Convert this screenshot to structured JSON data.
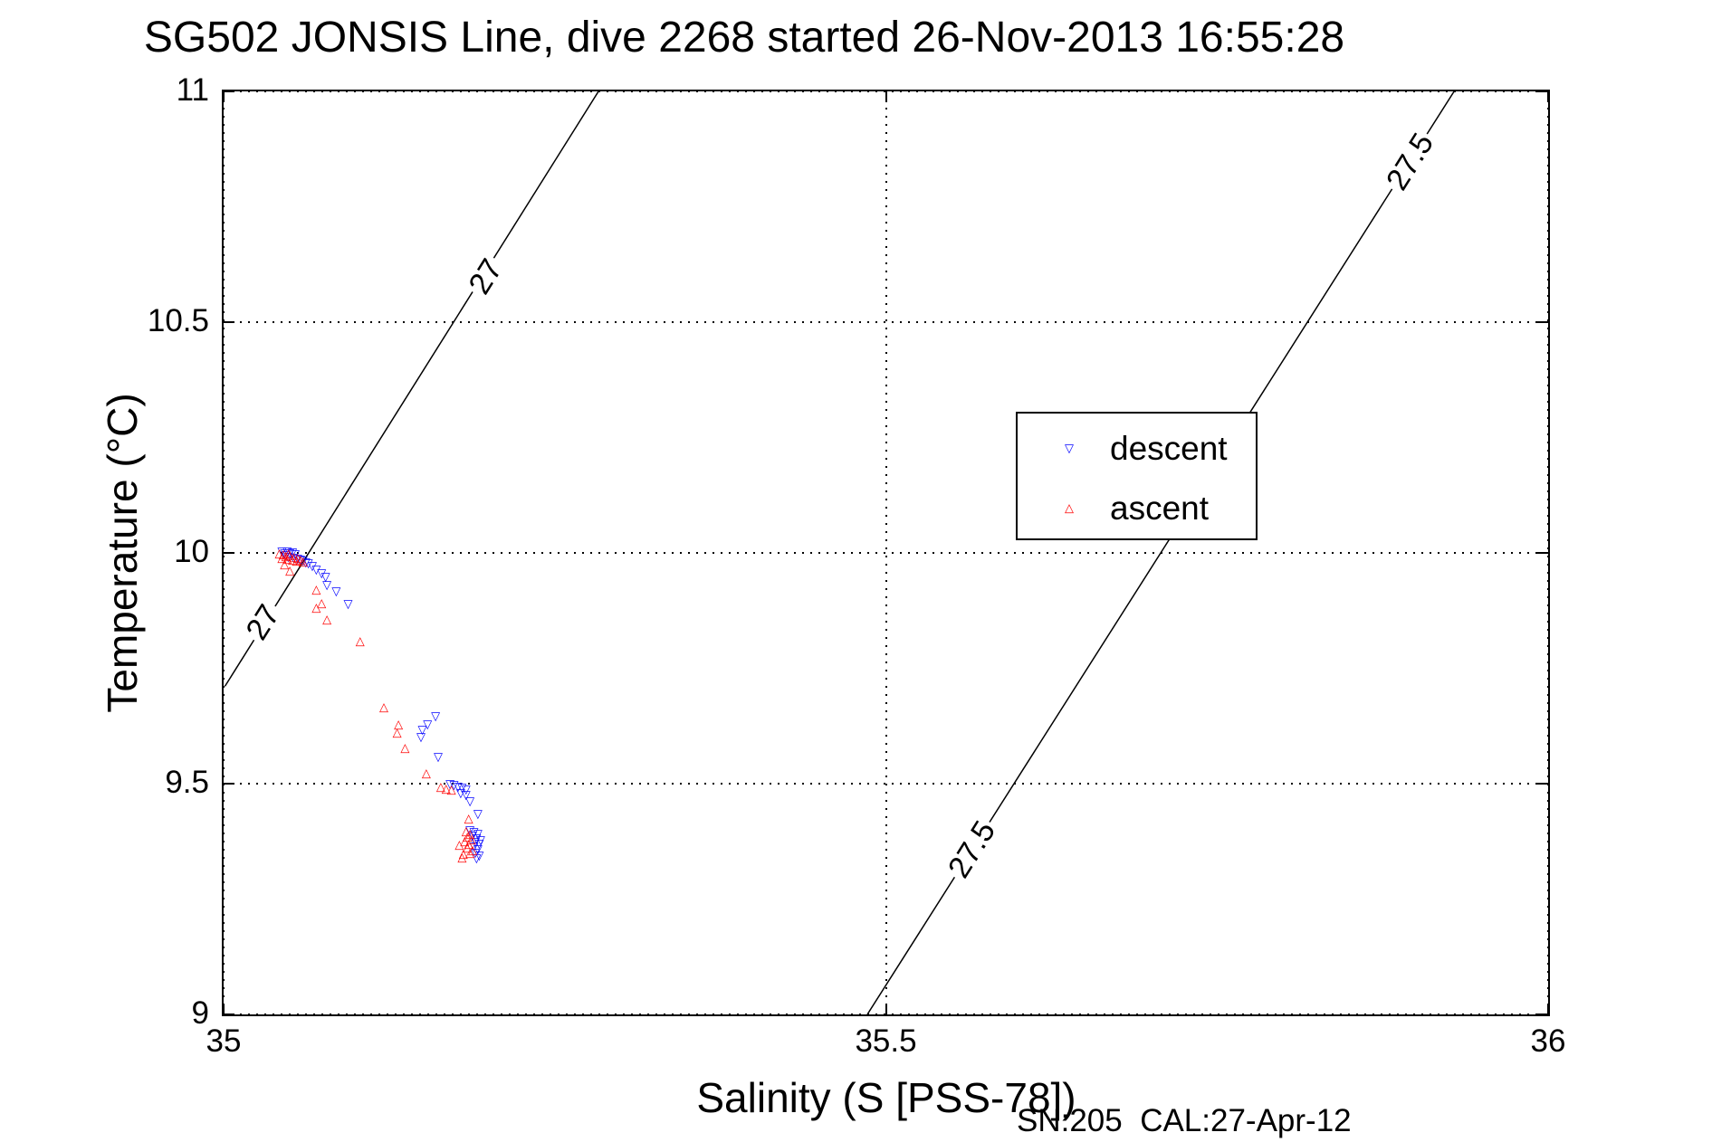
{
  "title": "SG502 JONSIS Line, dive 2268 started 26-Nov-2013 16:55:28",
  "axes": {
    "xlabel": "Salinity (S [PSS-78])",
    "ylabel": "Temperature (°C)",
    "x_ticks": [
      35,
      35.5,
      36
    ],
    "x_tick_labels": [
      "35",
      "35.5",
      "36"
    ],
    "y_ticks": [
      9,
      9.5,
      10,
      10.5,
      11
    ],
    "y_tick_labels": [
      "9",
      "9.5",
      "10",
      "10.5",
      "11"
    ]
  },
  "footnote": "SN:205  CAL:27-Apr-12",
  "legend": {
    "items": [
      {
        "label": "descent",
        "marker": "triangle-down",
        "color": "#0000ff"
      },
      {
        "label": "ascent",
        "marker": "triangle-up",
        "color": "#ff0000"
      }
    ]
  },
  "chart_data": {
    "type": "scatter",
    "title": "SG502 JONSIS Line, dive 2268 started 26-Nov-2013 16:55:28",
    "xlabel": "Salinity (S [PSS-78])",
    "ylabel": "Temperature (°C)",
    "xlim": [
      35,
      36
    ],
    "ylim": [
      9,
      11
    ],
    "grid": "dotted",
    "legend_position": "upper-right-inside",
    "contours": [
      {
        "level": "27",
        "from": [
          35.001,
          9.711
        ],
        "to": [
          35.283,
          11.0
        ],
        "label_positions": [
          [
            35.03,
            9.85
          ],
          [
            35.198,
            10.598
          ]
        ]
      },
      {
        "level": "27.5",
        "from": [
          35.486,
          9.0
        ],
        "to": [
          35.929,
          11.0
        ],
        "label_positions": [
          [
            35.565,
            9.357
          ],
          [
            35.896,
            10.848
          ]
        ]
      }
    ],
    "series": [
      {
        "name": "descent",
        "marker": "triangle-down",
        "color": "#0000ff",
        "points": [
          [
            35.044,
            10.001
          ],
          [
            35.046,
            9.999
          ],
          [
            35.048,
            10.002
          ],
          [
            35.05,
            9.998
          ],
          [
            35.052,
            10.0
          ],
          [
            35.054,
            9.996
          ],
          [
            35.047,
            9.994
          ],
          [
            35.049,
            9.991
          ],
          [
            35.053,
            9.989
          ],
          [
            35.056,
            9.987
          ],
          [
            35.058,
            9.985
          ],
          [
            35.06,
            9.982
          ],
          [
            35.062,
            9.979
          ],
          [
            35.064,
            9.976
          ],
          [
            35.067,
            9.971
          ],
          [
            35.07,
            9.962
          ],
          [
            35.074,
            9.955
          ],
          [
            35.077,
            9.948
          ],
          [
            35.078,
            9.929
          ],
          [
            35.085,
            9.916
          ],
          [
            35.094,
            9.889
          ],
          [
            35.16,
            9.646
          ],
          [
            35.154,
            9.627
          ],
          [
            35.15,
            9.615
          ],
          [
            35.149,
            9.6
          ],
          [
            35.162,
            9.557
          ],
          [
            35.171,
            9.499
          ],
          [
            35.174,
            9.496
          ],
          [
            35.177,
            9.493
          ],
          [
            35.18,
            9.491
          ],
          [
            35.183,
            9.487
          ],
          [
            35.179,
            9.479
          ],
          [
            35.183,
            9.475
          ],
          [
            35.186,
            9.461
          ],
          [
            35.192,
            9.434
          ],
          [
            35.186,
            9.398
          ],
          [
            35.189,
            9.394
          ],
          [
            35.192,
            9.39
          ],
          [
            35.188,
            9.386
          ],
          [
            35.191,
            9.381
          ],
          [
            35.194,
            9.377
          ],
          [
            35.19,
            9.373
          ],
          [
            35.193,
            9.368
          ],
          [
            35.189,
            9.363
          ],
          [
            35.192,
            9.357
          ],
          [
            35.19,
            9.35
          ],
          [
            35.193,
            9.344
          ],
          [
            35.191,
            9.338
          ]
        ]
      },
      {
        "name": "ascent",
        "marker": "triangle-up",
        "color": "#ff0000",
        "points": [
          [
            35.042,
            9.999
          ],
          [
            35.045,
            9.997
          ],
          [
            35.049,
            9.998
          ],
          [
            35.047,
            9.993
          ],
          [
            35.05,
            9.995
          ],
          [
            35.053,
            9.991
          ],
          [
            35.056,
            9.989
          ],
          [
            35.044,
            9.989
          ],
          [
            35.048,
            9.986
          ],
          [
            35.052,
            9.984
          ],
          [
            35.055,
            9.982
          ],
          [
            35.058,
            9.985
          ],
          [
            35.06,
            9.981
          ],
          [
            35.046,
            9.975
          ],
          [
            35.05,
            9.96
          ],
          [
            35.07,
            9.92
          ],
          [
            35.074,
            9.891
          ],
          [
            35.07,
            9.881
          ],
          [
            35.078,
            9.855
          ],
          [
            35.103,
            9.808
          ],
          [
            35.121,
            9.664
          ],
          [
            35.132,
            9.627
          ],
          [
            35.131,
            9.609
          ],
          [
            35.137,
            9.576
          ],
          [
            35.153,
            9.521
          ],
          [
            35.164,
            9.492
          ],
          [
            35.168,
            9.488
          ],
          [
            35.172,
            9.487
          ],
          [
            35.185,
            9.424
          ],
          [
            35.183,
            9.396
          ],
          [
            35.186,
            9.391
          ],
          [
            35.184,
            9.385
          ],
          [
            35.187,
            9.379
          ],
          [
            35.182,
            9.374
          ],
          [
            35.185,
            9.368
          ],
          [
            35.184,
            9.361
          ],
          [
            35.188,
            9.355
          ],
          [
            35.181,
            9.348
          ],
          [
            35.178,
            9.367
          ],
          [
            35.18,
            9.34
          ],
          [
            35.186,
            9.35
          ]
        ]
      }
    ]
  }
}
